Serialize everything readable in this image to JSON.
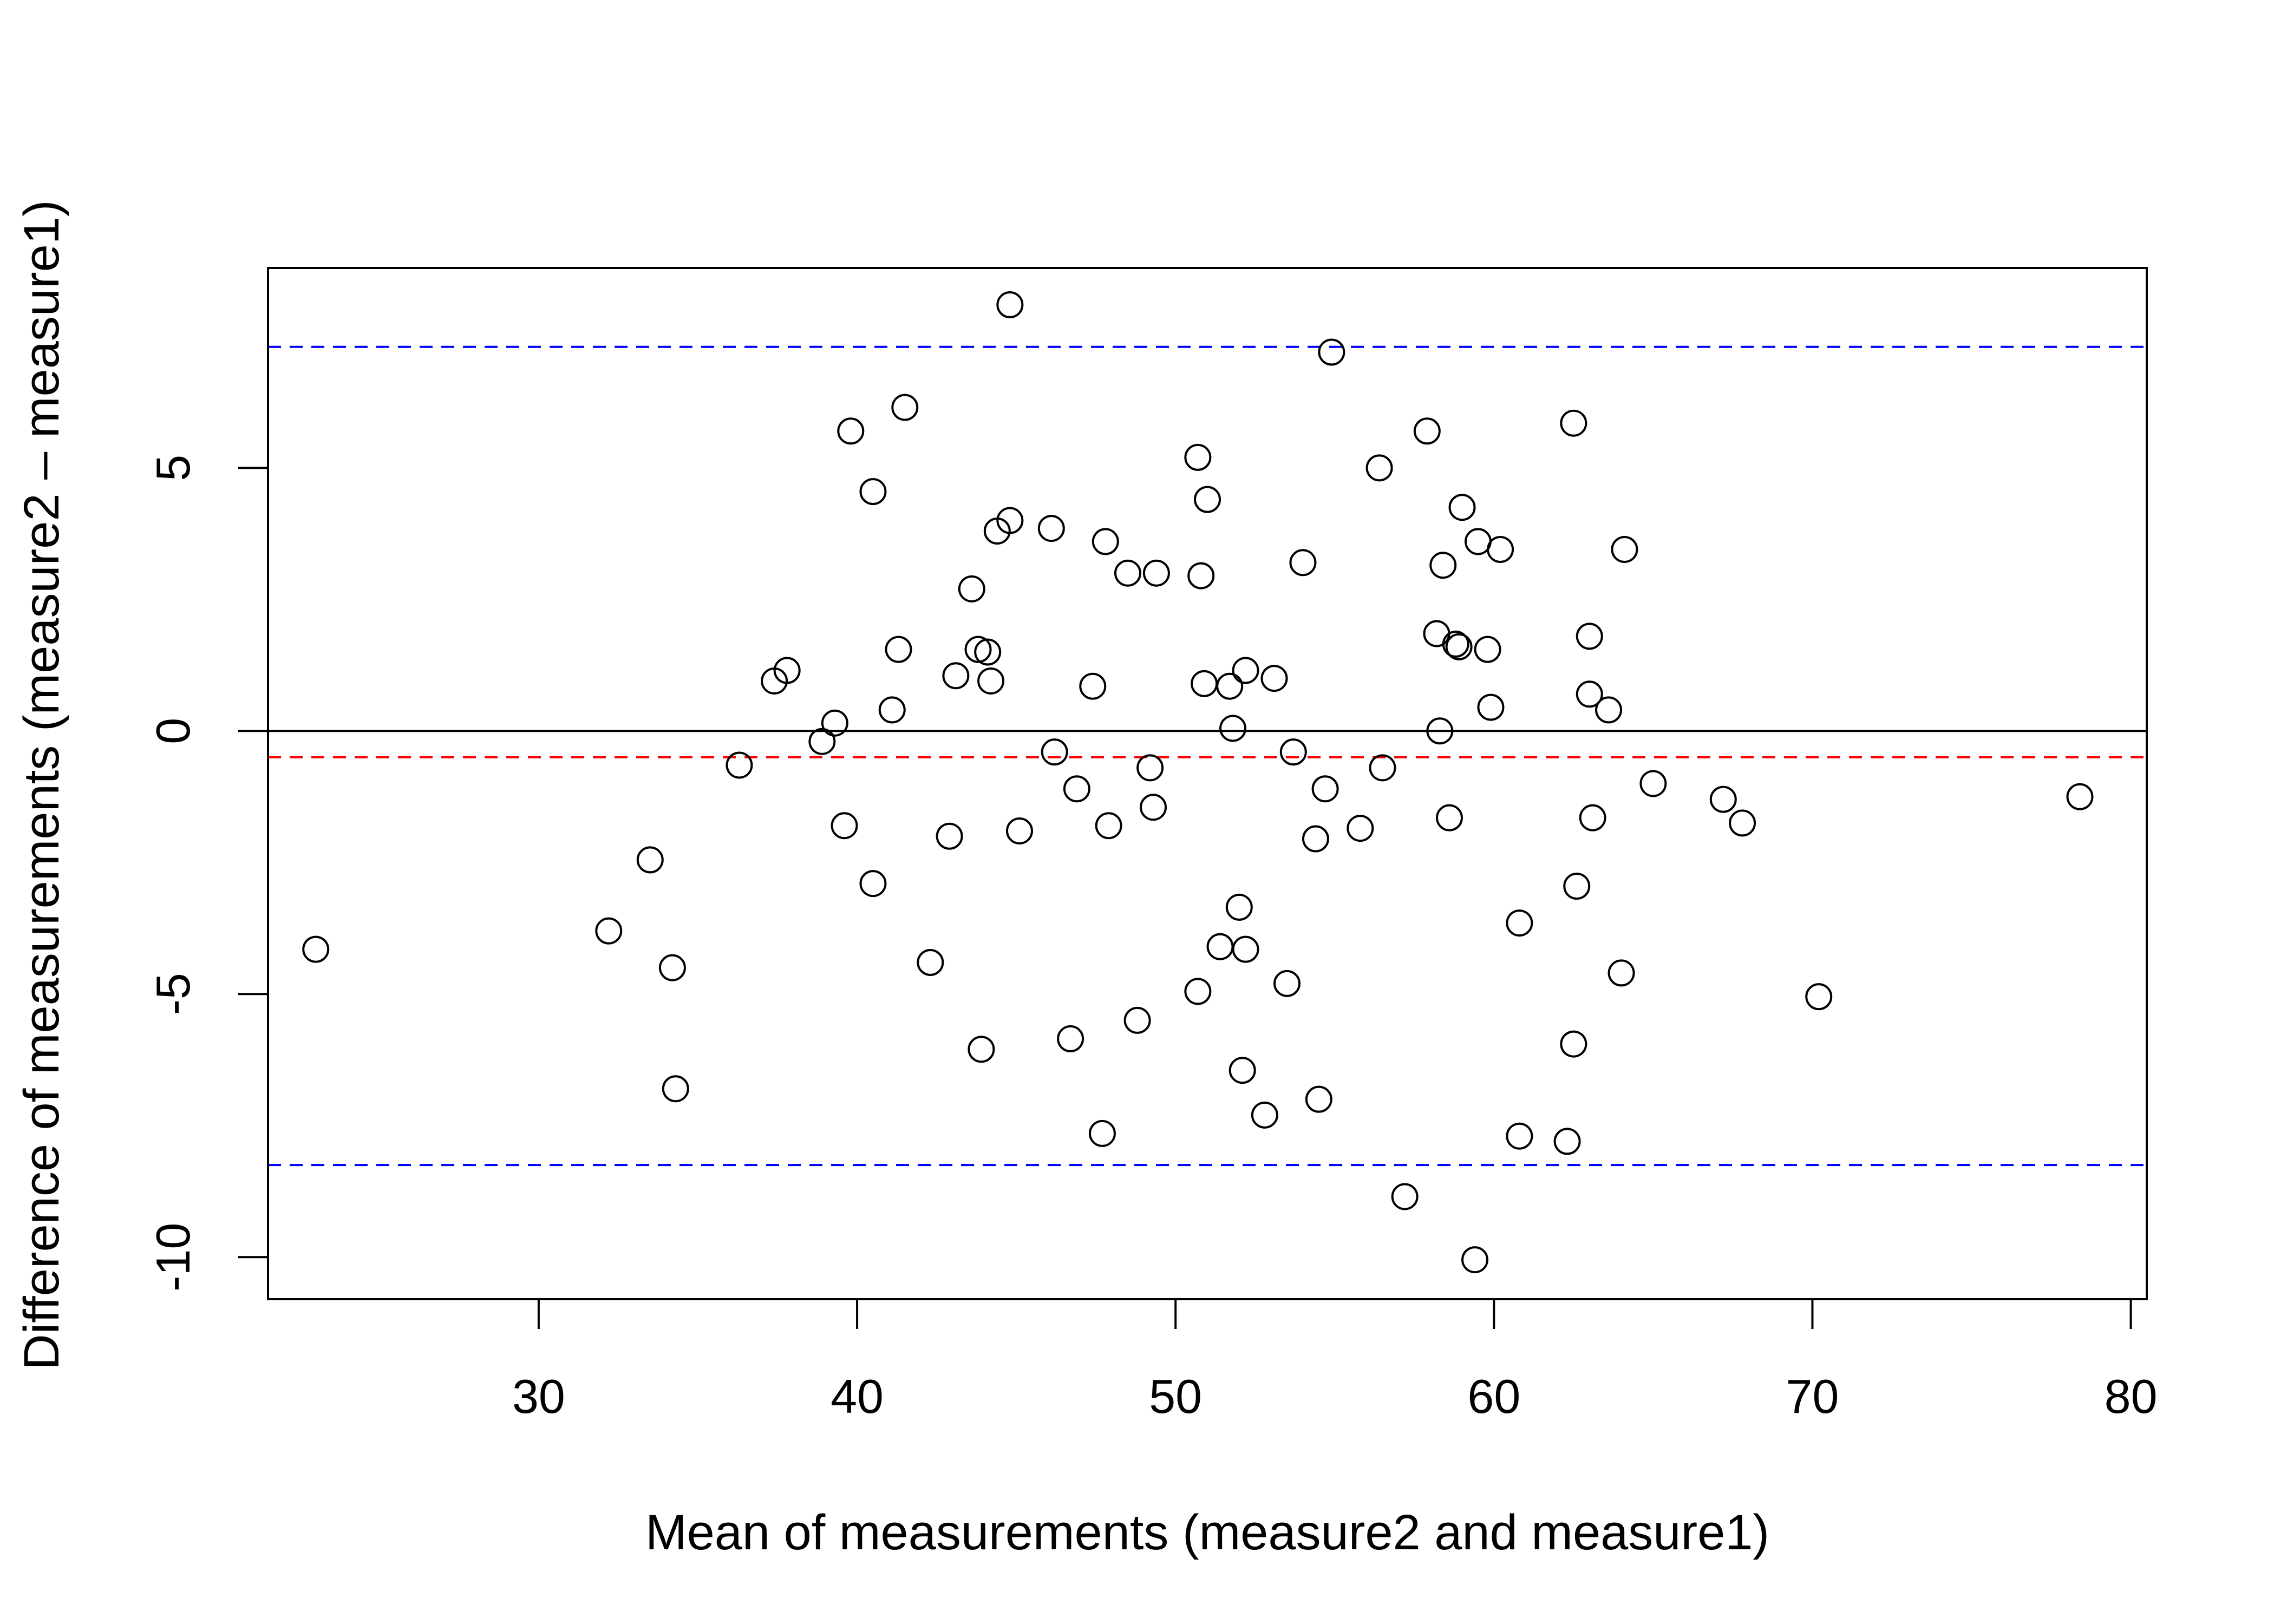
{
  "chart_data": {
    "type": "scatter",
    "title": "",
    "xlabel": "Mean of measurements (measure2 and measure1)",
    "ylabel": "Difference of measurements (measure2 – measure1)",
    "xlim": [
      21.5,
      80.5
    ],
    "ylim": [
      -10.8,
      8.8
    ],
    "x_ticks": [
      30,
      40,
      50,
      60,
      70,
      80
    ],
    "x_tick_labels": [
      "30",
      "40",
      "50",
      "60",
      "70",
      "80"
    ],
    "y_ticks": [
      -10,
      -5,
      0,
      5
    ],
    "y_tick_labels": [
      "-10",
      "-5",
      "0",
      "5"
    ],
    "grid": false,
    "legend": "none",
    "reference_lines": [
      {
        "kind": "zero",
        "y": 0,
        "color": "#000000",
        "style": "solid"
      },
      {
        "kind": "mean-difference",
        "y": -0.5,
        "color": "#ff0000",
        "style": "dashed"
      },
      {
        "kind": "upper-limit",
        "y": 7.3,
        "color": "#0000ff",
        "style": "dashed"
      },
      {
        "kind": "lower-limit",
        "y": -8.25,
        "color": "#0000ff",
        "style": "dashed"
      }
    ],
    "series": [
      {
        "marker": "open-circle",
        "color": "#000000",
        "points": [
          [
            23.0,
            -4.15
          ],
          [
            32.2,
            -3.8
          ],
          [
            33.5,
            -2.45
          ],
          [
            34.2,
            -4.5
          ],
          [
            34.3,
            -6.8
          ],
          [
            36.3,
            -0.65
          ],
          [
            37.4,
            0.95
          ],
          [
            37.8,
            1.15
          ],
          [
            38.9,
            -0.2
          ],
          [
            39.3,
            0.15
          ],
          [
            39.6,
            -1.8
          ],
          [
            39.8,
            5.7
          ],
          [
            40.5,
            4.55
          ],
          [
            40.5,
            -2.9
          ],
          [
            41.1,
            0.4
          ],
          [
            41.3,
            1.55
          ],
          [
            41.5,
            6.15
          ],
          [
            42.3,
            -4.4
          ],
          [
            42.9,
            -2.0
          ],
          [
            43.1,
            1.05
          ],
          [
            43.6,
            2.7
          ],
          [
            43.8,
            1.55
          ],
          [
            43.9,
            -6.05
          ],
          [
            44.1,
            1.5
          ],
          [
            44.2,
            0.95
          ],
          [
            44.4,
            3.8
          ],
          [
            44.8,
            8.1
          ],
          [
            44.8,
            4.0
          ],
          [
            45.1,
            -1.9
          ],
          [
            46.1,
            3.85
          ],
          [
            46.2,
            -0.4
          ],
          [
            46.7,
            -5.85
          ],
          [
            46.9,
            -1.1
          ],
          [
            47.4,
            0.85
          ],
          [
            47.7,
            -7.65
          ],
          [
            47.8,
            3.6
          ],
          [
            47.9,
            -1.8
          ],
          [
            48.5,
            3.0
          ],
          [
            48.8,
            -5.5
          ],
          [
            49.2,
            -0.7
          ],
          [
            49.3,
            -1.45
          ],
          [
            49.4,
            3.0
          ],
          [
            50.7,
            5.2
          ],
          [
            50.7,
            -4.95
          ],
          [
            50.8,
            2.95
          ],
          [
            50.9,
            0.9
          ],
          [
            51.0,
            4.4
          ],
          [
            51.4,
            -4.1
          ],
          [
            51.7,
            0.85
          ],
          [
            51.8,
            0.05
          ],
          [
            52.0,
            -3.35
          ],
          [
            52.1,
            -6.45
          ],
          [
            52.2,
            -4.15
          ],
          [
            52.2,
            1.15
          ],
          [
            52.8,
            -7.3
          ],
          [
            53.1,
            1.0
          ],
          [
            53.5,
            -4.8
          ],
          [
            53.7,
            -0.4
          ],
          [
            54.0,
            3.2
          ],
          [
            54.4,
            -2.05
          ],
          [
            54.5,
            -7.0
          ],
          [
            54.7,
            -1.1
          ],
          [
            54.9,
            7.2
          ],
          [
            55.8,
            -1.85
          ],
          [
            56.4,
            5.0
          ],
          [
            56.5,
            -0.7
          ],
          [
            57.2,
            -8.85
          ],
          [
            57.9,
            5.7
          ],
          [
            58.2,
            1.85
          ],
          [
            58.3,
            0.0
          ],
          [
            58.4,
            3.15
          ],
          [
            58.6,
            -1.65
          ],
          [
            58.8,
            1.65
          ],
          [
            58.9,
            1.6
          ],
          [
            59.0,
            4.25
          ],
          [
            59.4,
            -10.05
          ],
          [
            59.5,
            3.6
          ],
          [
            59.8,
            1.55
          ],
          [
            59.9,
            0.45
          ],
          [
            60.2,
            3.45
          ],
          [
            60.8,
            -7.7
          ],
          [
            60.8,
            -3.65
          ],
          [
            62.3,
            -7.8
          ],
          [
            62.5,
            5.85
          ],
          [
            62.5,
            -5.95
          ],
          [
            62.6,
            -2.95
          ],
          [
            63.0,
            1.8
          ],
          [
            63.0,
            0.7
          ],
          [
            63.1,
            -1.65
          ],
          [
            63.6,
            0.4
          ],
          [
            64.0,
            -4.6
          ],
          [
            64.1,
            3.45
          ],
          [
            65.0,
            -1.0
          ],
          [
            67.2,
            -1.3
          ],
          [
            67.8,
            -1.75
          ],
          [
            70.2,
            -5.05
          ],
          [
            78.4,
            -1.25
          ]
        ]
      }
    ]
  }
}
